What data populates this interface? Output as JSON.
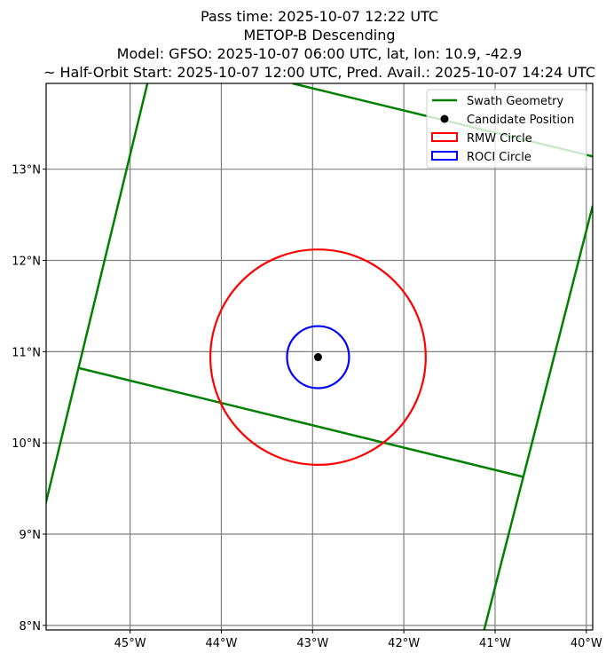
{
  "chart_data": {
    "type": "map",
    "title_lines": [
      "Pass time: 2025-10-07 12:22 UTC",
      "METOP-B Descending",
      "Model: GFSO: 2025-10-07 06:00 UTC, lat, lon: 10.9, -42.9",
      "~ Half-Orbit Start: 2025-10-07 12:00 UTC, Pred. Avail.: 2025-10-07 14:24 UTC"
    ],
    "lon_range": [
      -45.92,
      -39.93
    ],
    "lat_range": [
      7.95,
      13.94
    ],
    "grid": true,
    "x_ticks": [
      {
        "value": -45,
        "label": "45°W"
      },
      {
        "value": -44,
        "label": "44°W"
      },
      {
        "value": -43,
        "label": "43°W"
      },
      {
        "value": -42,
        "label": "42°W"
      },
      {
        "value": -41,
        "label": "41°W"
      },
      {
        "value": -40,
        "label": "40°W"
      }
    ],
    "y_ticks": [
      {
        "value": 13,
        "label": "13°N"
      },
      {
        "value": 12,
        "label": "12°N"
      },
      {
        "value": 11,
        "label": "11°N"
      },
      {
        "value": 10,
        "label": "10°N"
      },
      {
        "value": 9,
        "label": "9°N"
      },
      {
        "value": 8,
        "label": "8°N"
      }
    ],
    "swath_lines": [
      [
        [
          -46.2,
          8.2
        ],
        [
          -44.81,
          13.94
        ]
      ],
      [
        [
          -45.56,
          10.82
        ],
        [
          -40.7,
          9.63
        ]
      ],
      [
        [
          -41.12,
          7.95
        ],
        [
          -39.93,
          12.6
        ]
      ],
      [
        [
          -43.22,
          13.94
        ],
        [
          -39.93,
          13.14
        ]
      ]
    ],
    "candidate": {
      "lon": -42.94,
      "lat": 10.94
    },
    "rmw_radius_deg": 1.18,
    "roci_radius_deg": 0.34,
    "colors": {
      "swath": "#008000",
      "rmw": "#ff0000",
      "roci": "#0000ff",
      "candidate": "#000000",
      "grid": "#808080"
    },
    "legend": {
      "placement": "top-right",
      "entries": [
        "Swath Geometry",
        "Candidate Position",
        "RMW Circle",
        "ROCI Circle"
      ]
    }
  }
}
